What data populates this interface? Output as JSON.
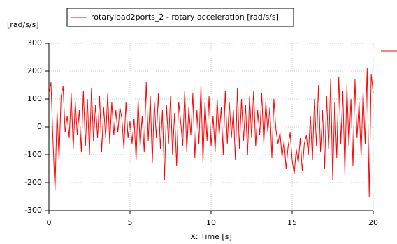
{
  "chart_data": {
    "type": "line",
    "legend": "rotaryload2ports_2 - rotary acceleration [rad/s/s]",
    "y_label": "[rad/s/s]",
    "x_label": "X: Time [s]",
    "xlim": [
      0,
      20
    ],
    "ylim": [
      -300,
      300
    ],
    "xticks": [
      0,
      5,
      10,
      15,
      20
    ],
    "yticks": [
      -300,
      -200,
      -100,
      0,
      100,
      200,
      300
    ],
    "grid": true,
    "color": "#ff0000",
    "x": [
      0,
      0.125,
      0.25,
      0.375,
      0.5,
      0.625,
      0.75,
      0.875,
      1,
      1.125,
      1.25,
      1.375,
      1.5,
      1.625,
      1.75,
      1.875,
      2,
      2.125,
      2.25,
      2.375,
      2.5,
      2.625,
      2.75,
      2.875,
      3,
      3.125,
      3.25,
      3.375,
      3.5,
      3.625,
      3.75,
      3.875,
      4,
      4.125,
      4.25,
      4.375,
      4.5,
      4.625,
      4.75,
      4.875,
      5,
      5.125,
      5.25,
      5.375,
      5.5,
      5.625,
      5.75,
      5.875,
      6,
      6.125,
      6.25,
      6.375,
      6.5,
      6.625,
      6.75,
      6.875,
      7,
      7.125,
      7.25,
      7.375,
      7.5,
      7.625,
      7.75,
      7.875,
      8,
      8.125,
      8.25,
      8.375,
      8.5,
      8.625,
      8.75,
      8.875,
      9,
      9.125,
      9.25,
      9.375,
      9.5,
      9.625,
      9.75,
      9.875,
      10,
      10.125,
      10.25,
      10.375,
      10.5,
      10.625,
      10.75,
      10.875,
      11,
      11.125,
      11.25,
      11.375,
      11.5,
      11.625,
      11.75,
      11.875,
      12,
      12.125,
      12.25,
      12.375,
      12.5,
      12.625,
      12.75,
      12.875,
      13,
      13.125,
      13.25,
      13.375,
      13.5,
      13.625,
      13.75,
      13.875,
      14,
      14.125,
      14.25,
      14.375,
      14.5,
      14.625,
      14.75,
      14.875,
      15,
      15.125,
      15.25,
      15.375,
      15.5,
      15.625,
      15.75,
      15.875,
      16,
      16.125,
      16.25,
      16.375,
      16.5,
      16.625,
      16.75,
      16.875,
      17,
      17.125,
      17.25,
      17.375,
      17.5,
      17.625,
      17.75,
      17.875,
      18,
      18.125,
      18.25,
      18.375,
      18.5,
      18.625,
      18.75,
      18.875,
      19,
      19.125,
      19.25,
      19.375,
      19.5,
      19.625,
      19.75,
      19.875,
      20
    ],
    "values": [
      120,
      160,
      -50,
      -230,
      60,
      -120,
      110,
      145,
      -20,
      40,
      -40,
      120,
      -80,
      90,
      -30,
      60,
      -90,
      130,
      -70,
      100,
      -100,
      140,
      -50,
      80,
      -40,
      110,
      -90,
      70,
      -40,
      120,
      -60,
      90,
      -30,
      60,
      -20,
      70,
      30,
      -80,
      90,
      -40,
      20,
      -60,
      30,
      -120,
      100,
      -70,
      40,
      -90,
      160,
      -50,
      110,
      -130,
      90,
      -40,
      120,
      -80,
      60,
      -190,
      80,
      -60,
      110,
      -100,
      50,
      -140,
      90,
      20,
      -70,
      130,
      -90,
      70,
      -30,
      120,
      -110,
      60,
      -60,
      150,
      -130,
      90,
      -50,
      110,
      -70,
      40,
      -90,
      100,
      -30,
      70,
      -100,
      130,
      -60,
      90,
      -40,
      60,
      -120,
      140,
      -80,
      100,
      -50,
      80,
      -100,
      110,
      -40,
      130,
      -70,
      60,
      -30,
      120,
      -60,
      90,
      -20,
      70,
      -110,
      100,
      -10,
      -60,
      -20,
      -110,
      -50,
      -150,
      -70,
      -20,
      -120,
      -170,
      -80,
      -130,
      -40,
      -160,
      -60,
      -30,
      -100,
      40,
      -120,
      100,
      -70,
      150,
      -90,
      60,
      -150,
      110,
      -80,
      170,
      -190,
      90,
      -110,
      180,
      -60,
      130,
      -170,
      150,
      -70,
      100,
      -140,
      170,
      -40,
      90,
      -110,
      130,
      -60,
      210,
      -250,
      190,
      120
    ]
  }
}
